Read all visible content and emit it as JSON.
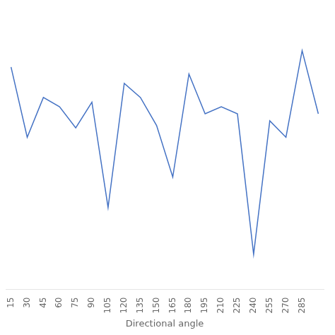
{
  "chart_data": {
    "type": "line",
    "x": [
      15,
      30,
      45,
      60,
      75,
      90,
      105,
      120,
      135,
      150,
      165,
      180,
      195,
      210,
      225,
      240,
      255,
      270,
      285,
      300
    ],
    "values": [
      9.5,
      6.5,
      8.2,
      7.8,
      6.9,
      8.0,
      3.5,
      8.8,
      8.2,
      7.0,
      4.8,
      9.2,
      7.5,
      7.8,
      7.5,
      1.5,
      7.2,
      6.5,
      10.2,
      7.5
    ],
    "color": "#4472c4",
    "xlabel": "Directional angle",
    "xlim": [
      10,
      305
    ],
    "xticks": [
      15,
      30,
      45,
      60,
      75,
      90,
      105,
      120,
      135,
      150,
      165,
      180,
      195,
      210,
      225,
      240,
      255,
      270,
      285
    ],
    "ylim": [
      0,
      12
    ],
    "tick_labels": "x",
    "grid": false
  }
}
